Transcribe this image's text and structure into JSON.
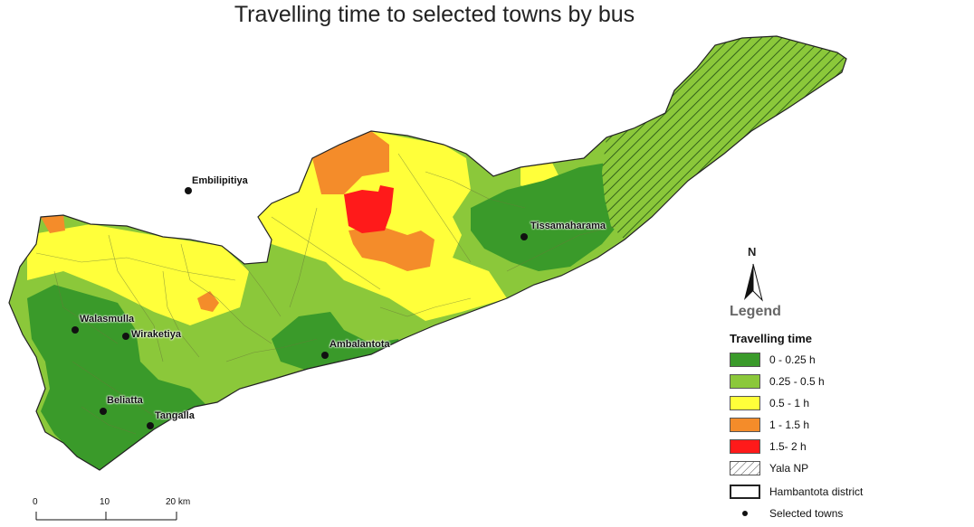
{
  "title": "Travelling time to selected towns by bus",
  "colors": {
    "t0": "#3a9a2a",
    "t1": "#8bc83a",
    "t2": "#ffff3a",
    "t3": "#f48c2a",
    "t4": "#ff1a1a",
    "boundary": "#222222"
  },
  "towns": [
    {
      "name": "Embilipitiya"
    },
    {
      "name": "Tissamaharama"
    },
    {
      "name": "Walasmulla"
    },
    {
      "name": "Wiraketiya"
    },
    {
      "name": "Ambalantota"
    },
    {
      "name": "Beliatta"
    },
    {
      "name": "Tangalla"
    }
  ],
  "north": {
    "label": "N"
  },
  "legend": {
    "title": "Legend",
    "subtitle": "Travelling time",
    "classes": [
      {
        "label": "0 - 0.25 h",
        "color": "#3a9a2a"
      },
      {
        "label": "0.25 - 0.5 h",
        "color": "#8bc83a"
      },
      {
        "label": "0.5 - 1 h",
        "color": "#ffff3a"
      },
      {
        "label": "1 - 1.5 h",
        "color": "#f48c2a"
      },
      {
        "label": "1.5- 2 h",
        "color": "#ff1a1a"
      }
    ],
    "yala": "Yala NP",
    "district": "Hambantota district",
    "towns": "Selected towns"
  },
  "scale": {
    "labels": [
      "0",
      "10",
      "20 km"
    ]
  }
}
